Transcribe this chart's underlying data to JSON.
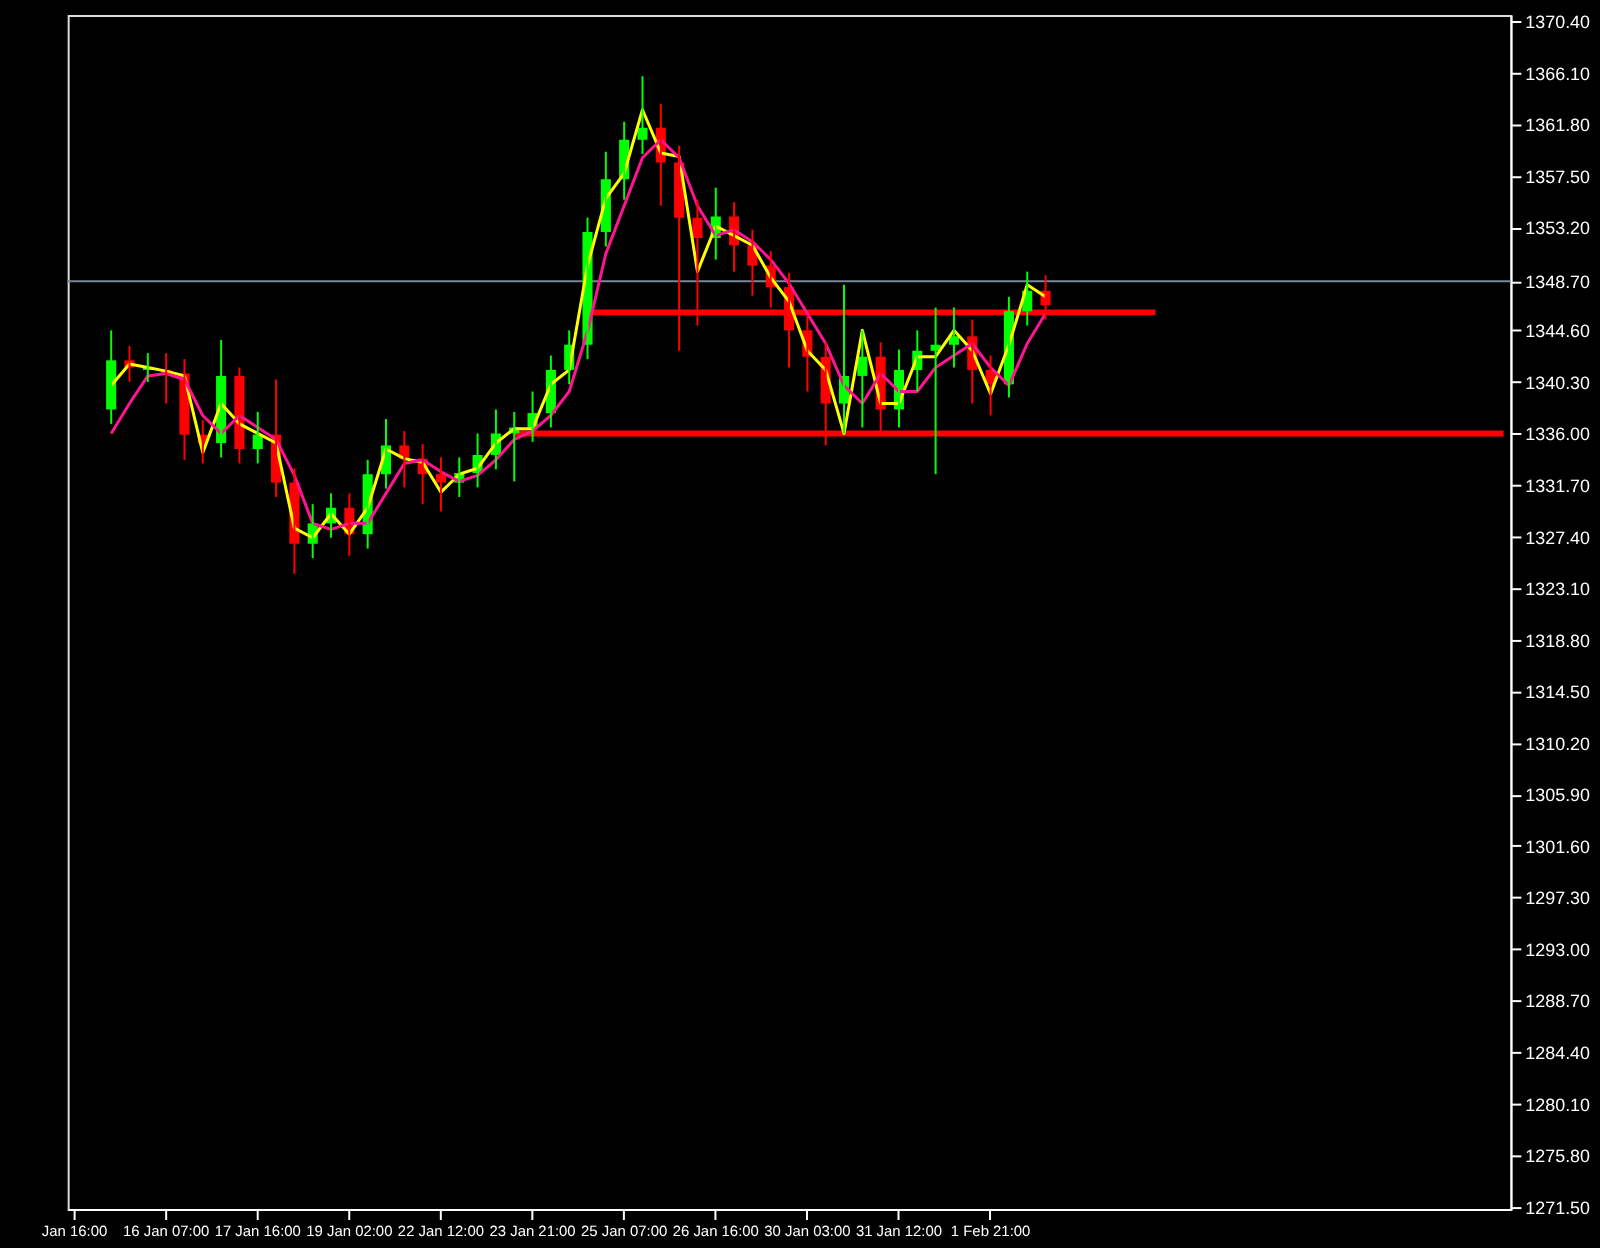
{
  "chart_data": {
    "type": "candlestick",
    "categories": [
      "Jan 16:00",
      null,
      null,
      null,
      null,
      "16 Jan 07:00",
      null,
      null,
      null,
      null,
      "17 Jan 16:00",
      null,
      null,
      null,
      null,
      "19 Jan 02:00",
      null,
      null,
      null,
      null,
      "22 Jan 12:00",
      null,
      null,
      null,
      null,
      "23 Jan 21:00",
      null,
      null,
      null,
      null,
      "25 Jan 07:00",
      null,
      null,
      null,
      null,
      "26 Jan 16:00",
      null,
      null,
      null,
      null,
      "30 Jan 03:00",
      null,
      null,
      null,
      null,
      "31 Jan 12:00",
      null,
      null,
      null,
      null,
      "1 Feb 21:00",
      null,
      null,
      null,
      null,
      null,
      null,
      null,
      null,
      null,
      null,
      null,
      null,
      null,
      null,
      null,
      null,
      null,
      null,
      null,
      null,
      null,
      null,
      null,
      null,
      null,
      null,
      null,
      null
    ],
    "ohlc": [
      null,
      null,
      [
        1338.0,
        1344.6,
        1336.8,
        1342.1
      ],
      [
        1342.1,
        1343.3,
        1340.3,
        1341.5
      ],
      [
        1341.5,
        1342.7,
        1340.3,
        1341.3
      ],
      [
        1341.3,
        1342.7,
        1338.5,
        1341.0
      ],
      [
        1341.0,
        1342.2,
        1333.8,
        1335.9
      ],
      [
        1335.9,
        1337.1,
        1333.5,
        1335.2
      ],
      [
        1335.2,
        1343.8,
        1334.0,
        1340.8
      ],
      [
        1340.8,
        1341.5,
        1333.5,
        1334.7
      ],
      [
        1334.7,
        1337.8,
        1333.5,
        1335.9
      ],
      [
        1335.9,
        1340.5,
        1330.7,
        1331.9
      ],
      [
        1331.9,
        1333.1,
        1324.3,
        1326.8
      ],
      [
        1326.8,
        1330.1,
        1325.6,
        1328.5
      ],
      [
        1328.5,
        1331.0,
        1327.3,
        1329.8
      ],
      [
        1329.8,
        1331.0,
        1325.8,
        1327.6
      ],
      [
        1327.6,
        1333.8,
        1326.4,
        1332.6
      ],
      [
        1332.6,
        1337.2,
        1331.4,
        1335.0
      ],
      [
        1335.0,
        1336.2,
        1331.5,
        1333.9
      ],
      [
        1333.9,
        1335.1,
        1330.1,
        1332.6
      ],
      [
        1332.6,
        1334.0,
        1329.5,
        1331.9
      ],
      [
        1331.9,
        1334.0,
        1330.7,
        1332.7
      ],
      [
        1332.7,
        1336.0,
        1331.5,
        1334.2
      ],
      [
        1334.2,
        1338.0,
        1333.0,
        1336.0
      ],
      [
        1336.0,
        1337.8,
        1332.0,
        1336.5
      ],
      [
        1336.5,
        1339.5,
        1335.3,
        1337.7
      ],
      [
        1337.7,
        1342.5,
        1336.5,
        1341.3
      ],
      [
        1341.3,
        1344.6,
        1340.1,
        1343.4
      ],
      [
        1343.4,
        1354.0,
        1342.2,
        1352.8
      ],
      [
        1352.8,
        1359.5,
        1351.6,
        1357.2
      ],
      [
        1357.2,
        1362.0,
        1355.5,
        1360.5
      ],
      [
        1360.5,
        1365.8,
        1359.3,
        1361.5
      ],
      [
        1361.5,
        1363.5,
        1355.0,
        1358.6
      ],
      [
        1358.6,
        1360.0,
        1342.9,
        1354.0
      ],
      [
        1354.0,
        1355.5,
        1345.0,
        1352.3
      ],
      [
        1352.3,
        1356.5,
        1350.5,
        1354.1
      ],
      [
        1354.1,
        1355.3,
        1349.5,
        1351.7
      ],
      [
        1351.7,
        1353.0,
        1347.5,
        1350.0
      ],
      [
        1350.0,
        1351.2,
        1346.5,
        1348.2
      ],
      [
        1348.2,
        1349.4,
        1341.5,
        1344.6
      ],
      [
        1344.6,
        1345.8,
        1339.5,
        1342.4
      ],
      [
        1342.4,
        1343.6,
        1335.0,
        1338.5
      ],
      [
        1338.5,
        1348.4,
        1336.0,
        1340.8
      ],
      [
        1340.8,
        1344.6,
        1336.5,
        1342.4
      ],
      [
        1342.4,
        1343.6,
        1336.0,
        1338.0
      ],
      [
        1338.0,
        1343.0,
        1336.5,
        1341.3
      ],
      [
        1341.3,
        1344.6,
        1339.5,
        1342.9
      ],
      [
        1342.9,
        1346.5,
        1332.6,
        1343.4
      ],
      [
        1343.4,
        1346.5,
        1341.5,
        1344.1
      ],
      [
        1344.1,
        1345.5,
        1338.5,
        1341.3
      ],
      [
        1341.3,
        1342.5,
        1337.5,
        1340.1
      ],
      [
        1340.1,
        1347.4,
        1339.0,
        1346.2
      ],
      [
        1346.2,
        1349.5,
        1345.0,
        1347.9
      ],
      [
        1347.9,
        1349.2,
        1345.5,
        1346.7
      ],
      null,
      null,
      null,
      null,
      null,
      null,
      null,
      null,
      null,
      null,
      null,
      null,
      null,
      null,
      null,
      null,
      null,
      null,
      null,
      null,
      null,
      null,
      null,
      null,
      null
    ],
    "colors": [
      null,
      null,
      "#00ff00",
      "#ff0000",
      "#00ff00",
      "#ff0000",
      "#ff0000",
      "#ff0000",
      "#00ff00",
      "#ff0000",
      "#00ff00",
      "#ff0000",
      "#ff0000",
      "#00ff00",
      "#00ff00",
      "#ff0000",
      "#00ff00",
      "#00ff00",
      "#ff0000",
      "#ff0000",
      "#ff0000",
      "#00ff00",
      "#00ff00",
      "#00ff00",
      "#00ff00",
      "#00ff00",
      "#00ff00",
      "#00ff00",
      "#00ff00",
      "#00ff00",
      "#00ff00",
      "#00ff00",
      "#ff0000",
      "#ff0000",
      "#ff0000",
      "#00ff00",
      "#ff0000",
      "#ff0000",
      "#ff0000",
      "#ff0000",
      "#ff0000",
      "#ff0000",
      "#00ff00",
      "#00ff00",
      "#ff0000",
      "#00ff00",
      "#00ff00",
      "#00ff00",
      "#00ff00",
      "#ff0000",
      "#ff0000",
      "#00ff00",
      "#00ff00",
      "#ff0000",
      null,
      null,
      null,
      null,
      null,
      null,
      null,
      null,
      null,
      null,
      null,
      null,
      null,
      null,
      null,
      null,
      null,
      null,
      null,
      null,
      null,
      null,
      null,
      null,
      null
    ],
    "series": [
      {
        "type": "line",
        "color": "#ffff00",
        "values": [
          null,
          null,
          1340.0,
          1341.8,
          1341.5,
          1341.2,
          1340.8,
          1334.4,
          1338.5,
          1336.8,
          1336.0,
          1335.2,
          1328.1,
          1327.3,
          1329.3,
          1327.6,
          1329.8,
          1334.7,
          1333.9,
          1333.6,
          1331.1,
          1332.6,
          1333.1,
          1335.2,
          1336.4,
          1336.4,
          1340.1,
          1341.3,
          1350.0,
          1355.6,
          1357.7,
          1363.0,
          1359.4,
          1359.1,
          1349.5,
          1353.3,
          1352.5,
          1351.7,
          1349.0,
          1347.0,
          1342.9,
          1341.3,
          1336.0,
          1344.6,
          1338.5,
          1338.5,
          1342.4,
          1342.4,
          1344.6,
          1342.9,
          1339.3,
          1343.4,
          1348.4,
          1347.4,
          null,
          null,
          null,
          null,
          null,
          null,
          null,
          null,
          null,
          null,
          null,
          null,
          null,
          null,
          null,
          null,
          null,
          null,
          null,
          null,
          null,
          null,
          null,
          null,
          null
        ]
      },
      {
        "type": "line",
        "color": "#ff1493",
        "values": [
          null,
          null,
          1336.0,
          1338.5,
          1340.8,
          1341.0,
          1340.5,
          1337.5,
          1336.0,
          1337.5,
          1336.5,
          1335.5,
          1332.5,
          1328.5,
          1328.0,
          1328.5,
          1328.5,
          1331.0,
          1333.5,
          1333.8,
          1332.8,
          1332.0,
          1332.5,
          1333.8,
          1335.5,
          1336.2,
          1337.5,
          1339.5,
          1344.5,
          1351.0,
          1355.0,
          1359.0,
          1360.5,
          1359.0,
          1355.0,
          1352.5,
          1353.0,
          1352.0,
          1350.5,
          1348.5,
          1346.0,
          1343.5,
          1340.0,
          1338.5,
          1341.0,
          1339.5,
          1339.5,
          1341.5,
          1342.5,
          1343.5,
          1341.5,
          1340.0,
          1343.5,
          1346.0,
          null,
          null,
          null,
          null,
          null,
          null,
          null,
          null,
          null,
          null,
          null,
          null,
          null,
          null,
          null,
          null,
          null,
          null,
          null,
          null,
          null,
          null,
          null,
          null,
          null
        ]
      },
      {
        "type": "line",
        "color": "#ff0000",
        "values": [
          null,
          null,
          null,
          null,
          null,
          null,
          null,
          null,
          null,
          null,
          null,
          null,
          null,
          null,
          null,
          null,
          null,
          null,
          null,
          null,
          null,
          null,
          null,
          null,
          null,
          null,
          null,
          null,
          1346.1,
          1346.1,
          1346.1,
          1346.1,
          1346.1,
          1346.1,
          1346.1,
          1346.1,
          1346.1,
          1346.1,
          1346.1,
          1346.1,
          1346.1,
          1346.1,
          1346.1,
          1346.1,
          1346.1,
          1346.1,
          1346.1,
          1346.1,
          1346.1,
          1346.1,
          1346.1,
          1346.1,
          1346.1,
          1346.1,
          1346.1,
          1346.1,
          1346.1,
          1346.1,
          1346.1,
          1346.1,
          null,
          null,
          null,
          null,
          null,
          null,
          null,
          null,
          null,
          null,
          null,
          null,
          null,
          null,
          null,
          null,
          null,
          null,
          null
        ]
      },
      {
        "type": "line",
        "color": "#ff0000",
        "values": [
          null,
          null,
          null,
          null,
          null,
          null,
          null,
          null,
          null,
          null,
          null,
          null,
          null,
          null,
          null,
          null,
          null,
          null,
          null,
          null,
          null,
          null,
          null,
          null,
          1336.0,
          1336.0,
          1336.0,
          1336.0,
          1336.0,
          1336.0,
          1336.0,
          1336.0,
          1336.0,
          1336.0,
          1336.0,
          1336.0,
          1336.0,
          1336.0,
          1336.0,
          1336.0,
          1336.0,
          1336.0,
          1336.0,
          1336.0,
          1336.0,
          1336.0,
          1336.0,
          1336.0,
          1336.0,
          1336.0,
          1336.0,
          1336.0,
          1336.0,
          1336.0,
          1336.0,
          1336.0,
          1336.0,
          1336.0,
          1336.0,
          1336.0,
          1336.0,
          1336.0,
          1336.0,
          1336.0,
          1336.0,
          1336.0,
          1336.0,
          1336.0,
          1336.0,
          1336.0,
          1336.0,
          1336.0,
          1336.0,
          1336.0,
          1336.0,
          1336.0,
          1336.0,
          1336.0,
          1336.0
        ]
      }
    ],
    "ref_lines": [
      {
        "axis": "y",
        "value": 1348.7,
        "label": null,
        "color": "#778899"
      }
    ],
    "ylim": [
      1271.3,
      1370.9
    ],
    "yticks": [
      {
        "value": 1370.4,
        "label": "1370.40"
      },
      {
        "value": 1366.1,
        "label": "1366.10"
      },
      {
        "value": 1361.8,
        "label": "1361.80"
      },
      {
        "value": 1357.5,
        "label": "1357.50"
      },
      {
        "value": 1353.2,
        "label": "1353.20"
      },
      {
        "value": 1348.7,
        "label": "1348.70"
      },
      {
        "value": 1344.6,
        "label": "1344.60"
      },
      {
        "value": 1340.3,
        "label": "1340.30"
      },
      {
        "value": 1336.0,
        "label": "1336.00"
      },
      {
        "value": 1331.7,
        "label": "1331.70"
      },
      {
        "value": 1327.4,
        "label": "1327.40"
      },
      {
        "value": 1323.1,
        "label": "1323.10"
      },
      {
        "value": 1318.8,
        "label": "1318.80"
      },
      {
        "value": 1314.5,
        "label": "1314.50"
      },
      {
        "value": 1310.2,
        "label": "1310.20"
      },
      {
        "value": 1305.9,
        "label": "1305.90"
      },
      {
        "value": 1301.6,
        "label": "1301.60"
      },
      {
        "value": 1297.3,
        "label": "1297.30"
      },
      {
        "value": 1293.0,
        "label": "1293.00"
      },
      {
        "value": 1288.7,
        "label": "1288.70"
      },
      {
        "value": 1284.4,
        "label": "1284.40"
      },
      {
        "value": 1280.1,
        "label": "1280.10"
      },
      {
        "value": 1275.8,
        "label": "1275.80"
      },
      {
        "value": 1271.5,
        "label": "1271.50"
      }
    ]
  }
}
